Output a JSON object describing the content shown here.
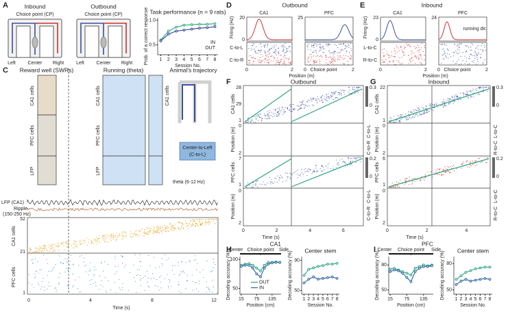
{
  "figure": {
    "A": {
      "label": "A",
      "inbound": "Inbound",
      "outbound": "Outbound",
      "cp": "Choice point (CP)",
      "left": "Left",
      "center": "Center",
      "right": "Right"
    },
    "C": {
      "label": "C",
      "reward": "Reward well (SWRs)",
      "running": "Running (theta)",
      "trajectory": "Animal's trajectory",
      "ca1": "CA1 cells",
      "pfc": "PFC cells",
      "lfp": "LFP",
      "theta": "theta (6-12 Hz)",
      "route": "Center-to-Left",
      "route_short": "(C-to-L)",
      "lfp_ca1": "LFP (CA1)",
      "ripple": "Ripple",
      "ripple_band": "(150-250 Hz)",
      "cell_ticks": [
        "52",
        "21",
        "1"
      ],
      "xticks": [
        "0",
        "4",
        "8",
        "12"
      ],
      "xlabel": "Time (s)"
    },
    "D": {
      "label": "D",
      "title": "Outbound",
      "ca1": "CA1",
      "pfc": "PFC",
      "ylabel": "Firing (Hz)",
      "ca1_max": "20",
      "pfc_max": "25",
      "zero": "0",
      "c_to_l": "C-to-L",
      "c_to_r": "C-to-R",
      "cp": "Choice point",
      "xlabel": "Position (m)",
      "xticks": [
        "0",
        "2"
      ]
    },
    "E": {
      "label": "E",
      "title": "Inbound",
      "ca1": "CA1",
      "pfc": "PFC",
      "ylabel": "Firing (Hz)",
      "ca1_max": "23",
      "pfc_max": "24",
      "zero": "0",
      "l_to_c": "L-to-C",
      "r_to_c": "R-to-C",
      "running": "running dir.",
      "cp": "Choice point",
      "xlabel": "Position (m)",
      "xticks": [
        "0",
        "2"
      ]
    },
    "F": {
      "label": "F",
      "title": "Outbound",
      "ca1_top": "28",
      "ca1_mid": "29",
      "one": "1",
      "pfc_top": "7",
      "ca1": "CA1 cells",
      "pfc": "PFC cells",
      "ylabel": "Position (m)",
      "pos_ticks": [
        "0",
        "2"
      ],
      "cbar_ca1": "0.3",
      "cbar_pfc": "0.2",
      "zero": "0",
      "c_to_l": "C-to-L",
      "c_to_r": "C-to-R",
      "xlabel": "Time (s)",
      "xticks": [
        "0",
        "2",
        "4",
        "6"
      ]
    },
    "G": {
      "label": "G",
      "title": "Inbound",
      "ca1_top": "22",
      "one": "1",
      "pfc_top": "6",
      "ca1": "CA1 cells",
      "pfc": "PFC cells",
      "ylabel": "Position (m)",
      "pos_ticks": [
        "0",
        "2"
      ],
      "cbar_ca1": "0.3",
      "cbar_pfc": "0.2",
      "zero": "0",
      "l_to_c": "L-to-C",
      "r_to_c": "R-to-C",
      "xlabel": "Time (s)",
      "xticks": [
        "0",
        "2",
        "4"
      ]
    },
    "H": {
      "label": "H"
    },
    "I": {
      "label": "I"
    }
  },
  "chart_data": [
    {
      "type": "line",
      "title": "Task performance (n = 9 rats)",
      "xlabel": "Session No.",
      "ylabel": "Prob. of a correct response",
      "x": [
        1,
        2,
        3,
        4,
        5,
        6,
        7,
        8
      ],
      "xlim": [
        0.6,
        8.4
      ],
      "xticks": [
        1,
        2,
        3,
        4,
        5,
        6,
        7,
        8
      ],
      "ylim": [
        0.3,
        1.05
      ],
      "yticks": [
        0.5,
        {
          "value": 1,
          "label": "1.0"
        }
      ],
      "legend": "lower right",
      "series": [
        {
          "name": "IN",
          "color": "#2aa57a",
          "values": [
            0.6,
            0.78,
            0.86,
            0.9,
            0.91,
            0.92,
            0.92,
            0.93
          ]
        },
        {
          "name": "OUT",
          "color": "#2b3f95",
          "values": [
            0.58,
            0.72,
            0.78,
            0.8,
            0.82,
            0.84,
            0.85,
            0.87
          ]
        }
      ]
    },
    {
      "type": "line",
      "title": "CA1",
      "xlabel": "Position (cm)",
      "ylabel": "Decoding accuracy (%)",
      "annotations": [
        "Center",
        "Choice point",
        "Side"
      ],
      "x": [
        15,
        30,
        45,
        60,
        75,
        90,
        105,
        120,
        135,
        150,
        165
      ],
      "xlim": [
        10,
        170
      ],
      "xticks": [
        15,
        75,
        135
      ],
      "ylim": [
        40,
        105
      ],
      "yticks": [
        50,
        100
      ],
      "legend": "center",
      "series": [
        {
          "name": "OUT",
          "color": "#2aa57a",
          "values": [
            90,
            92,
            93,
            90,
            85,
            80,
            90,
            95,
            95,
            96,
            95
          ]
        },
        {
          "name": "IN",
          "color": "#2b5fa5",
          "values": [
            88,
            90,
            90,
            85,
            75,
            70,
            85,
            92,
            94,
            95,
            95
          ]
        }
      ]
    },
    {
      "type": "line",
      "title": "Center stem",
      "xlabel": "Session No.",
      "ylabel": "Decoding accuracy (%)",
      "x": [
        1,
        2,
        3,
        4,
        5,
        6,
        7,
        8
      ],
      "xlim": [
        0.5,
        8.5
      ],
      "xticks": [
        1,
        2,
        3,
        4,
        5,
        6,
        7,
        8
      ],
      "ylim": [
        45,
        95
      ],
      "yticks": [
        50,
        90
      ],
      "series": [
        {
          "name": "OUT",
          "color": "#2aa57a",
          "values": [
            70,
            78,
            80,
            82,
            83,
            85,
            85,
            86
          ]
        },
        {
          "name": "IN",
          "color": "#2b5fa5",
          "values": [
            60,
            65,
            68,
            65,
            66,
            67,
            68,
            66
          ]
        }
      ]
    },
    {
      "type": "line",
      "title": "PFC",
      "xlabel": "Position (cm)",
      "ylabel": "Decoding accuracy (%)",
      "annotations": [
        "Center",
        "Choice point",
        "Side"
      ],
      "x": [
        15,
        30,
        45,
        60,
        75,
        90,
        105,
        120,
        135,
        150,
        165
      ],
      "xlim": [
        10,
        170
      ],
      "xticks": [
        15,
        75,
        135
      ],
      "ylim": [
        45,
        90
      ],
      "yticks": [
        50,
        80
      ],
      "series": [
        {
          "name": "OUT",
          "color": "#2aa57a",
          "values": [
            75,
            76,
            74,
            72,
            70,
            68,
            76,
            78,
            80,
            79,
            80
          ]
        },
        {
          "name": "IN",
          "color": "#2b5fa5",
          "values": [
            72,
            74,
            73,
            70,
            65,
            60,
            72,
            76,
            78,
            78,
            79
          ]
        }
      ]
    },
    {
      "type": "line",
      "title": "Center stem",
      "xlabel": "Session No.",
      "ylabel": "Decoding accuracy (%)",
      "x": [
        1,
        2,
        3,
        4,
        5,
        6,
        7,
        8
      ],
      "xlim": [
        0.5,
        8.5
      ],
      "xticks": [
        1,
        2,
        3,
        4,
        5,
        6,
        7,
        8
      ],
      "ylim": [
        45,
        88
      ],
      "yticks": [
        50,
        80
      ],
      "series": [
        {
          "name": "OUT",
          "color": "#2aa57a",
          "values": [
            62,
            66,
            70,
            72,
            74,
            75,
            76,
            76
          ]
        },
        {
          "name": "IN",
          "color": "#2b5fa5",
          "values": [
            56,
            60,
            62,
            60,
            61,
            62,
            63,
            62
          ]
        }
      ]
    }
  ]
}
